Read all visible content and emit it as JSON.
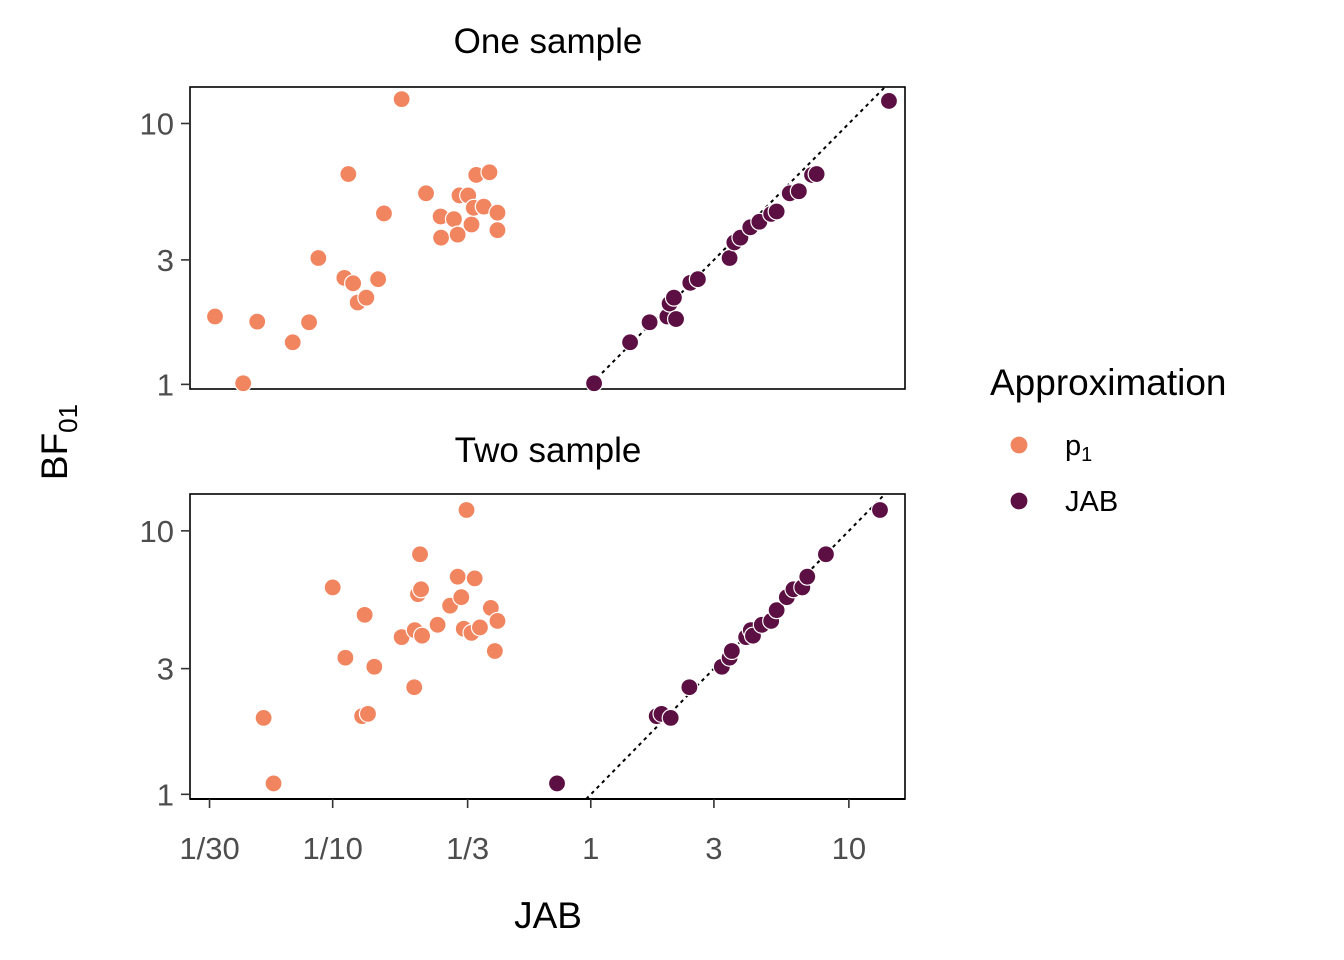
{
  "legend": {
    "title": "Approximation",
    "items": [
      {
        "label": "p",
        "label_sub": "1",
        "color": "#F1855F"
      },
      {
        "label": "JAB",
        "label_sub": "",
        "color": "#5C0F42"
      }
    ]
  },
  "chart_data": {
    "type": "scatter",
    "xlabel": "JAB",
    "ylabel": "BF",
    "ylabel_sub": "01",
    "x_scale": "log",
    "y_scale": "log",
    "xlim": [
      0.028,
      16.5
    ],
    "x_ticks": [
      {
        "value": 0.03333,
        "label": "1/30"
      },
      {
        "value": 0.1,
        "label": "1/10"
      },
      {
        "value": 0.3333,
        "label": "1/3"
      },
      {
        "value": 1,
        "label": "1"
      },
      {
        "value": 3,
        "label": "3"
      },
      {
        "value": 10,
        "label": "10"
      }
    ],
    "reference_line": "y = x (dotted)",
    "legend_position": "right",
    "grid": false,
    "panels": [
      {
        "title": "One sample",
        "ylim": [
          0.96,
          13.8
        ],
        "y_ticks": [
          {
            "value": 1,
            "label": "1"
          },
          {
            "value": 3,
            "label": "3"
          },
          {
            "value": 10,
            "label": "10"
          }
        ],
        "series": [
          {
            "name": "p1",
            "color": "#F1855F",
            "points": [
              [
                0.035,
                1.82
              ],
              [
                0.045,
                1.01
              ],
              [
                0.051,
                1.74
              ],
              [
                0.07,
                1.45
              ],
              [
                0.081,
                1.73
              ],
              [
                0.088,
                3.05
              ],
              [
                0.115,
                6.4
              ],
              [
                0.111,
                2.56
              ],
              [
                0.12,
                2.44
              ],
              [
                0.125,
                2.06
              ],
              [
                0.135,
                2.15
              ],
              [
                0.15,
                2.53
              ],
              [
                0.158,
                4.52
              ],
              [
                0.185,
                12.4
              ],
              [
                0.23,
                5.4
              ],
              [
                0.262,
                4.4
              ],
              [
                0.263,
                3.65
              ],
              [
                0.295,
                4.3
              ],
              [
                0.305,
                3.75
              ],
              [
                0.31,
                5.3
              ],
              [
                0.335,
                5.3
              ],
              [
                0.345,
                4.1
              ],
              [
                0.352,
                4.75
              ],
              [
                0.36,
                6.35
              ],
              [
                0.385,
                4.8
              ],
              [
                0.405,
                6.5
              ],
              [
                0.435,
                4.55
              ],
              [
                0.435,
                3.9
              ]
            ]
          },
          {
            "name": "JAB",
            "color": "#5C0F42",
            "points": [
              [
                1.03,
                1.01
              ],
              [
                1.42,
                1.45
              ],
              [
                1.69,
                1.73
              ],
              [
                1.98,
                1.82
              ],
              [
                2.02,
                2.04
              ],
              [
                2.1,
                2.15
              ],
              [
                2.14,
                1.78
              ],
              [
                2.43,
                2.45
              ],
              [
                2.6,
                2.53
              ],
              [
                3.45,
                3.05
              ],
              [
                3.6,
                3.5
              ],
              [
                3.8,
                3.65
              ],
              [
                4.15,
                4.0
              ],
              [
                4.5,
                4.2
              ],
              [
                5.0,
                4.5
              ],
              [
                5.25,
                4.6
              ],
              [
                5.9,
                5.4
              ],
              [
                6.4,
                5.5
              ],
              [
                7.2,
                6.35
              ],
              [
                7.5,
                6.4
              ],
              [
                14.3,
                12.2
              ]
            ]
          }
        ]
      },
      {
        "title": "Two sample",
        "ylim": [
          0.96,
          13.8
        ],
        "y_ticks": [
          {
            "value": 1,
            "label": "1"
          },
          {
            "value": 3,
            "label": "3"
          },
          {
            "value": 10,
            "label": "10"
          }
        ],
        "series": [
          {
            "name": "p1",
            "color": "#F1855F",
            "points": [
              [
                0.059,
                1.1
              ],
              [
                0.054,
                1.95
              ],
              [
                0.1,
                6.1
              ],
              [
                0.112,
                3.3
              ],
              [
                0.13,
                1.98
              ],
              [
                0.137,
                2.02
              ],
              [
                0.133,
                4.8
              ],
              [
                0.145,
                3.05
              ],
              [
                0.185,
                3.95
              ],
              [
                0.208,
                4.2
              ],
              [
                0.207,
                2.55
              ],
              [
                0.214,
                5.75
              ],
              [
                0.222,
                4.0
              ],
              [
                0.22,
                6.0
              ],
              [
                0.218,
                8.15
              ],
              [
                0.255,
                4.4
              ],
              [
                0.285,
                5.2
              ],
              [
                0.305,
                6.7
              ],
              [
                0.315,
                5.6
              ],
              [
                0.322,
                4.25
              ],
              [
                0.33,
                12.0
              ],
              [
                0.345,
                4.1
              ],
              [
                0.355,
                6.6
              ],
              [
                0.372,
                4.3
              ],
              [
                0.41,
                5.1
              ],
              [
                0.425,
                3.5
              ],
              [
                0.435,
                4.55
              ]
            ]
          },
          {
            "name": "JAB",
            "color": "#5C0F42",
            "points": [
              [
                0.74,
                1.1
              ],
              [
                1.8,
                1.98
              ],
              [
                1.88,
                2.02
              ],
              [
                2.04,
                1.95
              ],
              [
                2.41,
                2.55
              ],
              [
                3.22,
                3.05
              ],
              [
                3.45,
                3.3
              ],
              [
                3.52,
                3.5
              ],
              [
                4.0,
                3.95
              ],
              [
                4.17,
                4.2
              ],
              [
                4.25,
                4.0
              ],
              [
                4.6,
                4.4
              ],
              [
                5.0,
                4.55
              ],
              [
                5.25,
                5.0
              ],
              [
                5.75,
                5.6
              ],
              [
                6.1,
                6.0
              ],
              [
                6.6,
                6.1
              ],
              [
                6.9,
                6.7
              ],
              [
                8.15,
                8.15
              ],
              [
                13.2,
                12.0
              ]
            ]
          }
        ]
      }
    ]
  }
}
